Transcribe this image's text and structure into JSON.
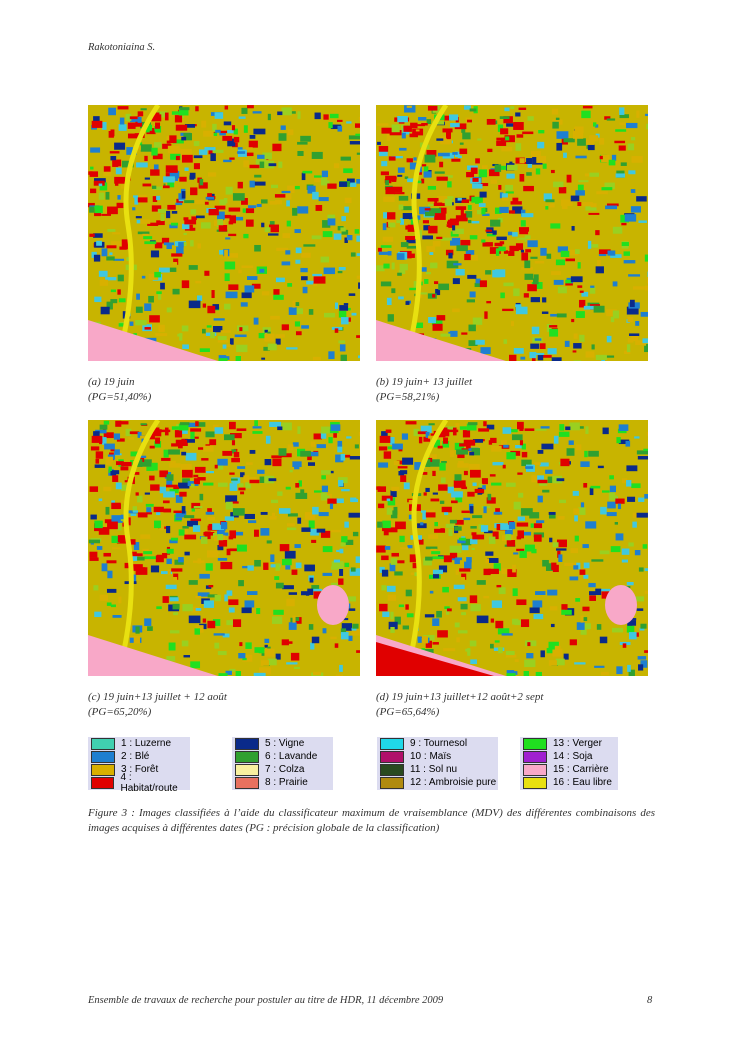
{
  "header": {
    "author": "Rakotoniaina S."
  },
  "figures": [
    {
      "label": "(a) 19 juin",
      "accuracy": "(PG=51,40%)"
    },
    {
      "label": "(b) 19 juin+ 13 juillet",
      "accuracy": "(PG=58,21%)"
    },
    {
      "label": "(c) 19 juin+13 juillet + 12 août",
      "accuracy": "(PG=65,20%)"
    },
    {
      "label": "(d) 19 juin+13 juillet+12 août+2 sept",
      "accuracy": "(PG=65,64%)"
    }
  ],
  "legend": [
    {
      "items": [
        {
          "label": "1 : Luzerne",
          "color": "#40d0b0"
        },
        {
          "label": "2 : Blé",
          "color": "#1e7fd0"
        },
        {
          "label": "3 : Forêt",
          "color": "#d8b000"
        },
        {
          "label": "4 : Habitat/route",
          "color": "#e00000"
        }
      ]
    },
    {
      "items": [
        {
          "label": "5 : Vigne",
          "color": "#0a2a8a"
        },
        {
          "label": "6 : Lavande",
          "color": "#30a030"
        },
        {
          "label": "7 : Colza",
          "color": "#f8f0a0"
        },
        {
          "label": "8 : Prairie",
          "color": "#e87060"
        }
      ]
    },
    {
      "items": [
        {
          "label": "9 : Tournesol",
          "color": "#20d8e8"
        },
        {
          "label": "10 : Maïs",
          "color": "#b0106a"
        },
        {
          "label": "11 : Sol nu",
          "color": "#2a4a20"
        },
        {
          "label": "12 : Ambroisie pure",
          "color": "#b08a10"
        }
      ]
    },
    {
      "items": [
        {
          "label": "13 : Verger",
          "color": "#20e020"
        },
        {
          "label": "14 : Soja",
          "color": "#a020d0"
        },
        {
          "label": "15 : Carrière",
          "color": "#f8a8c8"
        },
        {
          "label": "16 : Eau libre",
          "color": "#e8e010"
        }
      ]
    }
  ],
  "caption": "Figure 3 : Images classifiées à l’aide du classificateur maximum de vraisemblance (MDV) des différentes combinaisons des images acquises à différentes dates (PG : précision globale de la classification)",
  "footer": {
    "text": "Ensemble de travaux de recherche pour postuler au titre de HDR, 11 décembre 2009",
    "page": "8"
  }
}
